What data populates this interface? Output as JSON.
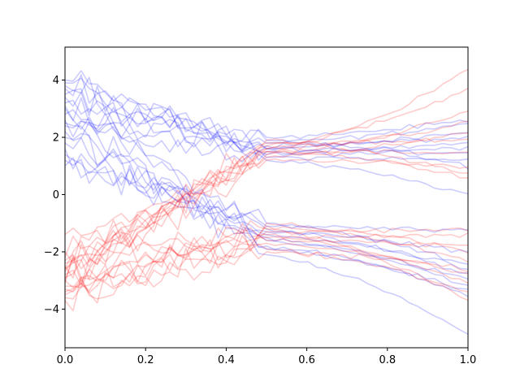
{
  "chart_data": {
    "type": "line",
    "title": "",
    "xlabel": "",
    "ylabel": "",
    "xlim": [
      0,
      1
    ],
    "ylim": [
      -5.35,
      5.15
    ],
    "x_ticks": [
      0.0,
      0.2,
      0.4,
      0.6,
      0.8,
      1.0
    ],
    "x_tick_labels": [
      "0.0",
      "0.2",
      "0.4",
      "0.6",
      "0.8",
      "1.0"
    ],
    "y_ticks": [
      -4,
      -2,
      0,
      2,
      4
    ],
    "y_tick_labels": [
      "−4",
      "−2",
      "0",
      "2",
      "4"
    ],
    "grid": false,
    "legend": "none",
    "line_opacity": 0.2,
    "series_groups": [
      {
        "color": "#0000ff",
        "start_at_x0": [
          4.0,
          3.9,
          3.7,
          3.5,
          3.4,
          3.2,
          3.0,
          2.8,
          2.6,
          2.4,
          2.2,
          2.0,
          1.8,
          1.6,
          1.4,
          1.2,
          1.0,
          3.8,
          3.1,
          2.5
        ],
        "converge_at_x05": [
          1.6,
          1.8,
          1.5,
          1.7,
          1.4,
          2.0,
          1.3,
          1.9,
          1.6,
          1.2,
          -1.2,
          -1.5,
          -1.0,
          -1.8,
          -1.3,
          -1.6,
          -1.1,
          -1.9,
          -1.4,
          -2.1
        ],
        "end_at_x1": [
          2.2,
          2.5,
          1.8,
          2.0,
          1.5,
          2.6,
          1.2,
          1.0,
          1.6,
          0.0,
          -2.8,
          -3.2,
          -2.5,
          -3.5,
          -2.0,
          -3.0,
          -1.3,
          -3.4,
          -2.6,
          -4.9
        ]
      },
      {
        "color": "#ff0000",
        "start_at_x0": [
          -2.0,
          -2.2,
          -2.4,
          -2.5,
          -2.6,
          -2.7,
          -2.8,
          -2.9,
          -3.0,
          -3.1,
          -3.2,
          -3.3,
          -3.4,
          -3.5,
          -3.6,
          -3.7,
          -2.3,
          -2.6,
          -3.0,
          -1.4
        ],
        "converge_at_x05": [
          1.5,
          1.7,
          1.4,
          1.6,
          1.3,
          1.8,
          1.5,
          1.2,
          1.9,
          1.6,
          -1.3,
          -1.6,
          -1.1,
          -1.7,
          -1.4,
          -1.9,
          -1.2,
          -1.5,
          -1.0,
          -2.0
        ],
        "end_at_x1": [
          4.4,
          3.7,
          2.9,
          2.5,
          2.2,
          1.9,
          1.5,
          1.0,
          0.7,
          0.6,
          -1.2,
          -1.8,
          -2.3,
          -2.8,
          -3.1,
          -3.4,
          -3.7,
          -1.4,
          -2.0,
          -2.6
        ]
      }
    ]
  }
}
